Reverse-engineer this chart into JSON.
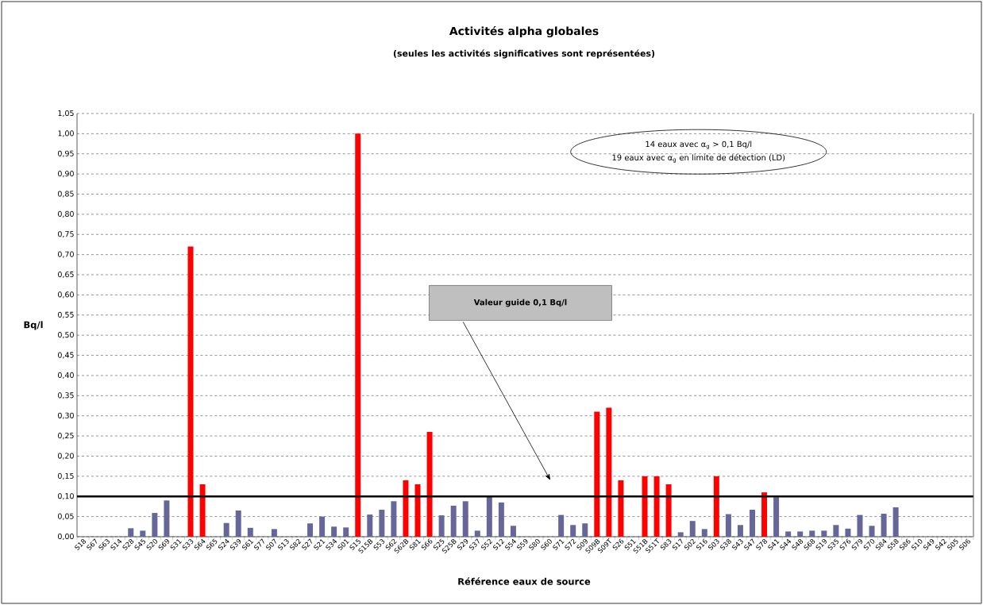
{
  "chart_data": {
    "type": "bar",
    "title": "Activités alpha globales",
    "subtitle": "(seules les activités significatives sont représentées)",
    "xlabel": "Référence eaux de source",
    "ylabel": "Bq/l",
    "categories": [
      "S18",
      "S67",
      "S63",
      "S14",
      "S28",
      "S45",
      "S20",
      "S69",
      "S31",
      "S33",
      "S64",
      "S65",
      "S24",
      "S39",
      "S61",
      "S77",
      "S07",
      "S13",
      "S82",
      "S27",
      "S21",
      "S34",
      "S01",
      "S15",
      "S15B",
      "S53",
      "S62",
      "S62B",
      "S81",
      "S66",
      "S25",
      "S25B",
      "S29",
      "S37",
      "S52",
      "S12",
      "S54",
      "S59",
      "S80",
      "S60",
      "S71",
      "S72",
      "S09",
      "S09B",
      "S09T",
      "S26",
      "S51",
      "S51B",
      "S51T",
      "S83",
      "S17",
      "S02",
      "S16",
      "S03",
      "S38",
      "S43",
      "S47",
      "S78",
      "S41",
      "S44",
      "S48",
      "S68",
      "S19",
      "S35",
      "S76",
      "S79",
      "S70",
      "S84",
      "S58",
      "S86",
      "S10",
      "S49",
      "S42",
      "S05",
      "S06"
    ],
    "values": [
      null,
      null,
      null,
      null,
      0.021,
      0.015,
      0.059,
      0.09,
      null,
      0.72,
      0.13,
      null,
      0.034,
      0.065,
      0.022,
      null,
      0.019,
      null,
      null,
      0.033,
      0.05,
      0.025,
      0.023,
      1.0,
      0.055,
      0.067,
      0.088,
      0.14,
      0.13,
      0.26,
      0.053,
      0.077,
      0.088,
      0.015,
      0.099,
      0.085,
      0.027,
      null,
      null,
      null,
      0.054,
      0.029,
      0.033,
      0.31,
      0.32,
      0.14,
      null,
      0.15,
      0.15,
      0.13,
      0.011,
      0.039,
      0.019,
      0.15,
      0.056,
      0.029,
      0.067,
      0.11,
      0.098,
      0.013,
      0.013,
      0.015,
      0.015,
      0.029,
      0.02,
      0.054,
      0.027,
      0.057,
      0.073,
      null,
      null,
      null,
      null,
      null,
      null
    ],
    "colors": [
      "#666699",
      "#666699",
      "#666699",
      "#666699",
      "#666699",
      "#666699",
      "#666699",
      "#666699",
      "#666699",
      "#ff0000",
      "#ff0000",
      "#666699",
      "#666699",
      "#666699",
      "#666699",
      "#666699",
      "#666699",
      "#666699",
      "#666699",
      "#666699",
      "#666699",
      "#666699",
      "#666699",
      "#ff0000",
      "#666699",
      "#666699",
      "#666699",
      "#ff0000",
      "#ff0000",
      "#ff0000",
      "#666699",
      "#666699",
      "#666699",
      "#666699",
      "#666699",
      "#666699",
      "#666699",
      "#666699",
      "#666699",
      "#666699",
      "#666699",
      "#666699",
      "#666699",
      "#ff0000",
      "#ff0000",
      "#ff0000",
      "#666699",
      "#ff0000",
      "#ff0000",
      "#ff0000",
      "#666699",
      "#666699",
      "#666699",
      "#ff0000",
      "#666699",
      "#666699",
      "#666699",
      "#ff0000",
      "#666699",
      "#666699",
      "#666699",
      "#666699",
      "#666699",
      "#666699",
      "#666699",
      "#666699",
      "#666699",
      "#666699",
      "#666699",
      "#666699",
      "#666699",
      "#666699",
      "#666699",
      "#666699",
      "#666699"
    ],
    "ylim": [
      0,
      1.05
    ],
    "yticks": [
      {
        "value": 0,
        "label": "0,00"
      },
      {
        "value": 0.05,
        "label": "0,05"
      },
      {
        "value": 0.1,
        "label": "0,10"
      },
      {
        "value": 0.15,
        "label": "0,15"
      },
      {
        "value": 0.2,
        "label": "0,20"
      },
      {
        "value": 0.25,
        "label": "0,25"
      },
      {
        "value": 0.3,
        "label": "0,30"
      },
      {
        "value": 0.35,
        "label": "0,35"
      },
      {
        "value": 0.4,
        "label": "0,40"
      },
      {
        "value": 0.45,
        "label": "0,45"
      },
      {
        "value": 0.5,
        "label": "0,50"
      },
      {
        "value": 0.55,
        "label": "0,55"
      },
      {
        "value": 0.6,
        "label": "0,60"
      },
      {
        "value": 0.65,
        "label": "0,65"
      },
      {
        "value": 0.7,
        "label": "0,70"
      },
      {
        "value": 0.75,
        "label": "0,75"
      },
      {
        "value": 0.8,
        "label": "0,80"
      },
      {
        "value": 0.85,
        "label": "0,85"
      },
      {
        "value": 0.9,
        "label": "0,90"
      },
      {
        "value": 0.95,
        "label": "0,95"
      },
      {
        "value": 1.0,
        "label": "1,00"
      },
      {
        "value": 1.05,
        "label": "1,05"
      }
    ],
    "grid": "y",
    "ref_lines": [
      {
        "axis": "y",
        "value": 0.1,
        "label": "Valeur guide  0,1 Bq/l",
        "color": "#000000"
      }
    ],
    "annotations": [
      "14 eaux avec α$_{g}$ > 0,1 Bq/l",
      "19 eaux avec α$_{g}$ en limite de détection (LD)"
    ]
  }
}
